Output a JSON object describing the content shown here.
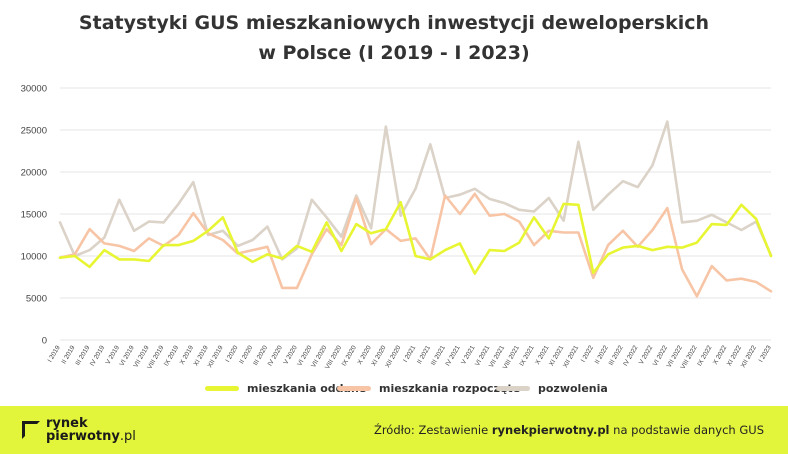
{
  "title_line1": "Statystyki GUS mieszkaniowych inwestycji deweloperskich",
  "title_line2": "w Polsce (I 2019 - I 2023)",
  "colors": {
    "oddane": "#e8f533",
    "rozpoczete": "#f7c5a5",
    "pozwolenia": "#dbd2c8",
    "footer": "#e2f53a"
  },
  "footer": {
    "logo_line1": "rynek",
    "logo_line2_bold": "pierwotny",
    "logo_line2_rest": ".pl",
    "source_prefix": "Źródło: Zestawienie ",
    "source_bold": "rynekpierwotny.pl",
    "source_suffix": " na podstawie danych GUS"
  },
  "chart_data": {
    "type": "line",
    "title": "Statystyki GUS mieszkaniowych inwestycji deweloperskich w Polsce (I 2019 - I 2023)",
    "ylim": [
      0,
      30000
    ],
    "yticks": [
      0,
      5000,
      10000,
      15000,
      20000,
      25000,
      30000
    ],
    "grid": true,
    "legend_position": "bottom",
    "x": [
      "I 2019",
      "II 2019",
      "III 2019",
      "IV 2019",
      "V 2019",
      "VI 2019",
      "VII 2019",
      "VIII 2019",
      "IX 2019",
      "X 2019",
      "XI 2019",
      "XII 2019",
      "I 2020",
      "II 2020",
      "III 2020",
      "IV 2020",
      "V 2020",
      "VI 2020",
      "VII 2020",
      "VIII 2020",
      "IX 2020",
      "X 2020",
      "XI 2020",
      "XII 2020",
      "I 2021",
      "II 2021",
      "III 2021",
      "IV 2021",
      "V 2021",
      "VI 2021",
      "VII 2021",
      "VIII 2021",
      "IX 2021",
      "X 2021",
      "XI 2021",
      "XII 2021",
      "I 2022",
      "II 2022",
      "III 2022",
      "IV 2022",
      "V 2022",
      "VI 2022",
      "VII 2022",
      "VIII 2022",
      "IX 2022",
      "X 2022",
      "XI 2022",
      "XII 2022",
      "I 2023"
    ],
    "series": [
      {
        "name": "mieszkania oddane",
        "color": "#e8f533",
        "values": [
          9800,
          10000,
          8700,
          10700,
          9600,
          9600,
          9400,
          11300,
          11300,
          11800,
          13000,
          14600,
          10400,
          9300,
          10200,
          9700,
          11200,
          10500,
          14000,
          10600,
          13800,
          12700,
          13200,
          16400,
          10000,
          9600,
          10700,
          11500,
          7900,
          10700,
          10600,
          11600,
          14600,
          12100,
          16200,
          16100,
          8000,
          10200,
          11000,
          11200,
          10700,
          11100,
          11000,
          11600,
          13800,
          13700,
          16100,
          14400,
          10000
        ]
      },
      {
        "name": "mieszkania rozpoczęte",
        "color": "#f7c5a5",
        "values": [
          9800,
          10200,
          13200,
          11500,
          11200,
          10600,
          12100,
          11200,
          12500,
          15100,
          12700,
          11900,
          10300,
          10700,
          11100,
          6200,
          6200,
          10200,
          13200,
          11300,
          16900,
          11400,
          13200,
          11800,
          12100,
          9600,
          17200,
          15000,
          17400,
          14800,
          15000,
          14100,
          11300,
          13000,
          12800,
          12800,
          7400,
          11300,
          13000,
          11100,
          13100,
          15700,
          8400,
          5200,
          8800,
          7100,
          7300,
          6900,
          5800
        ]
      },
      {
        "name": "pozwolenia",
        "color": "#dbd2c8",
        "values": [
          14000,
          10000,
          10700,
          12200,
          16700,
          13000,
          14100,
          14000,
          16200,
          18800,
          12500,
          13000,
          11200,
          11900,
          13500,
          9600,
          10900,
          16700,
          14600,
          12300,
          17200,
          13300,
          25400,
          14800,
          18000,
          23300,
          16900,
          17300,
          18000,
          16800,
          16300,
          15500,
          15300,
          16900,
          14200,
          23600,
          15500,
          17300,
          18900,
          18200,
          20800,
          26000,
          14000,
          14200,
          14900,
          14000,
          13100,
          14100,
          10100
        ]
      }
    ]
  }
}
